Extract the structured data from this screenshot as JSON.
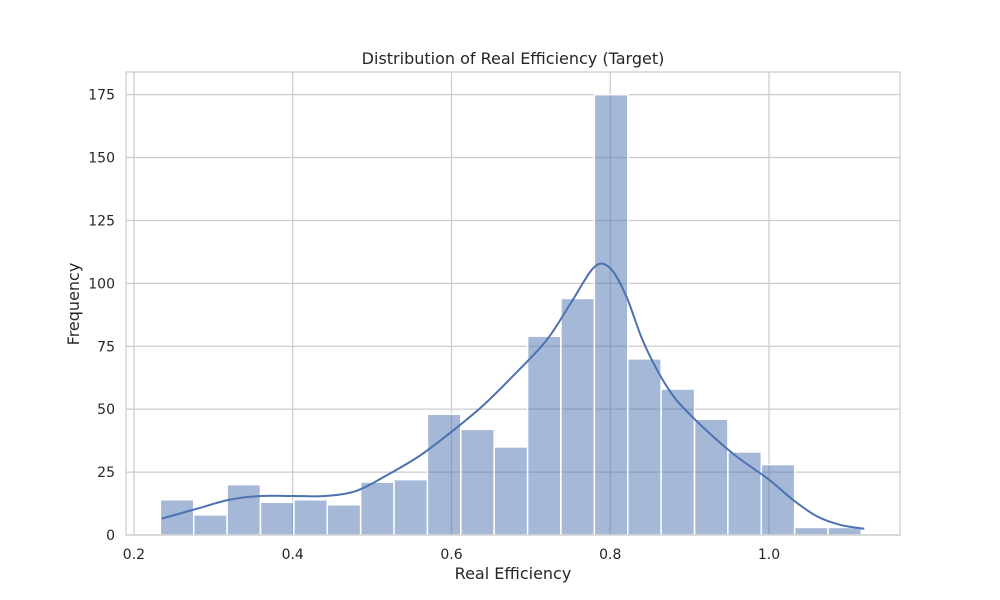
{
  "chart_data": {
    "type": "bar",
    "subtype": "histogram-with-kde",
    "title": "Distribution of Real Efficiency (Target)",
    "xlabel": "Real Efficiency",
    "ylabel": "Frequency",
    "xlim": [
      0.19,
      1.165
    ],
    "ylim": [
      0,
      184
    ],
    "x_ticks": [
      0.2,
      0.4,
      0.6,
      0.8,
      1.0
    ],
    "x_tick_labels": [
      "0.2",
      "0.4",
      "0.6",
      "0.8",
      "1.0"
    ],
    "y_ticks": [
      0,
      25,
      50,
      75,
      100,
      125,
      150,
      175
    ],
    "y_tick_labels": [
      "0",
      "25",
      "50",
      "75",
      "100",
      "125",
      "150",
      "175"
    ],
    "grid": true,
    "colors": {
      "bar": "#4c72b0",
      "line": "#4c72b0",
      "grid": "#cccccc",
      "background": "#ffffff"
    },
    "bin_edges": [
      0.2333,
      0.2753,
      0.3174,
      0.3594,
      0.4015,
      0.4436,
      0.4856,
      0.5277,
      0.5697,
      0.6118,
      0.6538,
      0.6959,
      0.7379,
      0.78,
      0.8221,
      0.8641,
      0.9062,
      0.9482,
      0.9903,
      1.0323,
      1.0744,
      1.1164
    ],
    "counts": [
      14,
      8,
      20,
      13,
      14,
      12,
      21,
      22,
      48,
      42,
      35,
      79,
      94,
      175,
      70,
      58,
      46,
      33,
      28,
      3,
      3
    ],
    "kde": {
      "x": [
        0.235,
        0.28,
        0.32,
        0.36,
        0.4,
        0.44,
        0.48,
        0.52,
        0.56,
        0.6,
        0.64,
        0.68,
        0.72,
        0.75,
        0.78,
        0.8,
        0.82,
        0.84,
        0.86,
        0.88,
        0.9,
        0.93,
        0.96,
        1.0,
        1.03,
        1.06,
        1.09,
        1.12
      ],
      "y": [
        6.5,
        10.5,
        14,
        15.5,
        15.5,
        15.5,
        17.5,
        24,
        31.5,
        41,
        51.5,
        64,
        77.5,
        92,
        106.5,
        106,
        95,
        78,
        65,
        55,
        48,
        39,
        31,
        22,
        14,
        7.5,
        4,
        2.5
      ]
    }
  }
}
